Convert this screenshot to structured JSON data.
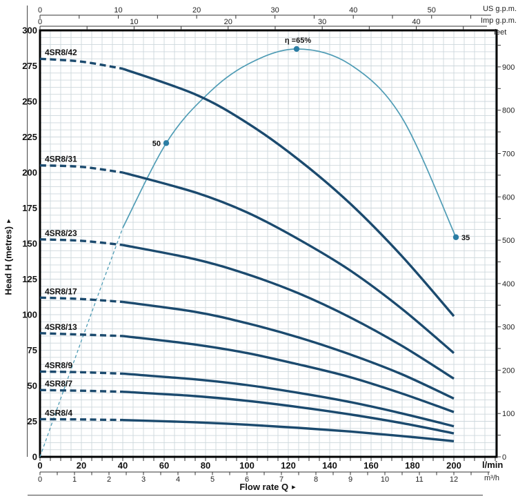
{
  "icons": {
    "arrow_right": "▸"
  },
  "axes": {
    "top_us": {
      "unit": "US g.p.m.",
      "tick_labels": [
        0,
        10,
        20,
        30,
        40,
        50
      ],
      "tick_step_minor": 5
    },
    "top_imp": {
      "unit": "Imp g.p.m.",
      "tick_labels": [
        0,
        10,
        20,
        30,
        40
      ],
      "tick_step_minor": 5
    },
    "left": {
      "title": "Head H (metres)",
      "tick_labels": [
        0,
        25,
        50,
        75,
        100,
        125,
        150,
        175,
        200,
        225,
        250,
        275,
        300
      ]
    },
    "right": {
      "unit": "feet",
      "tick_labels": [
        0,
        100,
        200,
        300,
        400,
        500,
        600,
        700,
        800,
        900
      ],
      "tick_step_minor": 50
    },
    "bottom_lmin": {
      "unit": "l/min",
      "tick_labels": [
        0,
        20,
        40,
        60,
        80,
        100,
        120,
        140,
        160,
        180,
        200
      ],
      "tick_step_minor": 5
    },
    "bottom_m3h": {
      "unit": "m³/h",
      "tick_labels": [
        0,
        1,
        2,
        3,
        4,
        5,
        6,
        7,
        8,
        9,
        10,
        11,
        12
      ],
      "tick_step_minor": 0.5
    },
    "xlabel": "Flow rate Q"
  },
  "chart_data": {
    "type": "line",
    "title": "",
    "x_unit": "l/min",
    "y_unit": "metres",
    "xlim": [
      0,
      200
    ],
    "ylim": [
      0,
      300
    ],
    "right_axis_feet_lim": [
      0,
      984
    ],
    "grid": true,
    "grid_step_x_lmin": 5,
    "grid_step_y_m": 5,
    "q_samples": [
      0,
      20,
      40,
      75,
      100,
      125,
      150,
      175,
      200
    ],
    "dashed_below_q": 40,
    "series": [
      {
        "name": "4SR8/42",
        "h": [
          280,
          278,
          273,
          255,
          235,
          209,
          178,
          141,
          99
        ]
      },
      {
        "name": "4SR8/31",
        "h": [
          205,
          204,
          200,
          186,
          172,
          153,
          131,
          104,
          73
        ]
      },
      {
        "name": "4SR8/23",
        "h": [
          153,
          152,
          149,
          139,
          128.5,
          115,
          98,
          78,
          55
        ]
      },
      {
        "name": "4SR8/17",
        "h": [
          112,
          111,
          109,
          102,
          94,
          84,
          72,
          58,
          41
        ]
      },
      {
        "name": "4SR8/13",
        "h": [
          87,
          86,
          85,
          79,
          73,
          65,
          56,
          44.5,
          31.5
        ]
      },
      {
        "name": "4SR8/9",
        "h": [
          60,
          59.5,
          58.5,
          54.5,
          50.5,
          45,
          38.5,
          30.5,
          21.5
        ]
      },
      {
        "name": "4SR8/7",
        "h": [
          47,
          46.5,
          45.8,
          42.7,
          39.4,
          35,
          29.8,
          23.7,
          16.5
        ]
      },
      {
        "name": "4SR8/4",
        "h": [
          26.5,
          26.3,
          25.9,
          24.3,
          22.6,
          20.4,
          17.8,
          14.6,
          11
        ]
      }
    ],
    "efficiency_curve": {
      "name": "efficiency",
      "q": [
        0,
        20,
        40,
        61,
        80,
        100,
        124,
        150,
        175,
        201
      ],
      "eta_percent": [
        0,
        18.5,
        36.5,
        50,
        57.5,
        62.5,
        65,
        62.5,
        54,
        35
      ],
      "metres_per_percent": 4.414,
      "dashed_below_q": 40,
      "markers": [
        {
          "q": 61,
          "eta": 50,
          "label": "50",
          "label_side": "left"
        },
        {
          "q": 124,
          "eta": 65,
          "label": "η =65%",
          "label_side": "top"
        },
        {
          "q": 201,
          "eta": 35,
          "label": "35",
          "label_side": "right"
        }
      ]
    }
  },
  "colors": {
    "pump_curve": "#1b4a6e",
    "efficiency_line": "#4f9cb5",
    "efficiency_dot": "#2b7da4",
    "grid": "#cdd7dc",
    "border": "#000000",
    "axis_line": "#333333",
    "text": "#111111",
    "secondary_text": "#222222"
  }
}
